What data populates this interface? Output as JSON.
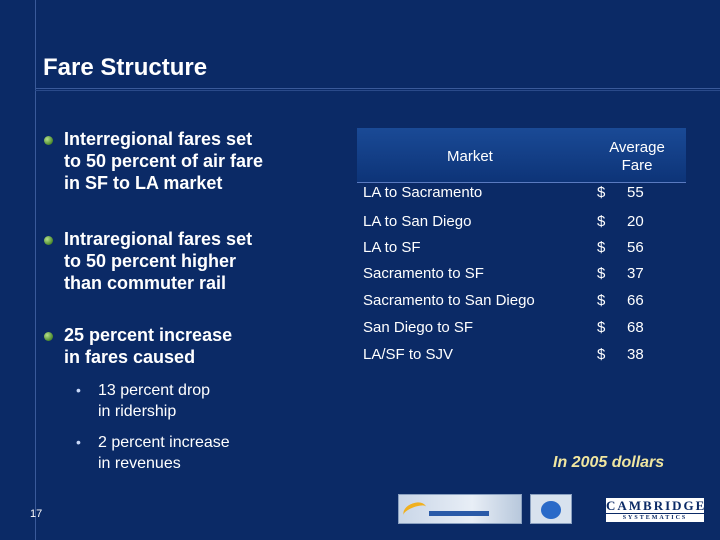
{
  "slide": {
    "title": "Fare Structure",
    "page_number": "17",
    "note": "In 2005 dollars"
  },
  "bullets": [
    {
      "text": "Interregional fares set\nto 50 percent of air fare\nin SF to LA market"
    },
    {
      "text": "Intraregional fares set\nto 50 percent higher\nthan commuter rail"
    },
    {
      "text": "25 percent increase\nin fares caused"
    }
  ],
  "sub_bullets": [
    {
      "marker": "•",
      "text": "13 percent drop\nin ridership"
    },
    {
      "marker": "•",
      "text": "2 percent increase\nin revenues"
    }
  ],
  "table": {
    "headers": {
      "market": "Market",
      "fare": "Average\nFare"
    },
    "rows": [
      {
        "market": "LA to Sacramento",
        "currency": "$",
        "fare": "55"
      },
      {
        "market": "LA to San Diego",
        "currency": "$",
        "fare": "20"
      },
      {
        "market": "LA to SF",
        "currency": "$",
        "fare": "56"
      },
      {
        "market": "Sacramento to SF",
        "currency": "$",
        "fare": "37"
      },
      {
        "market": "Sacramento to San Diego",
        "currency": "$",
        "fare": "66"
      },
      {
        "market": "San Diego to SF",
        "currency": "$",
        "fare": "68"
      },
      {
        "market": "LA/SF to SJV",
        "currency": "$",
        "fare": "38"
      }
    ]
  },
  "logos": {
    "cambridge_top": "CAMBRIDGE",
    "cambridge_bottom": "SYSTEMATICS"
  },
  "colors": {
    "background": "#0b2a66",
    "note": "#f0e6a0",
    "bullet_dot": "#4c8a2c"
  }
}
